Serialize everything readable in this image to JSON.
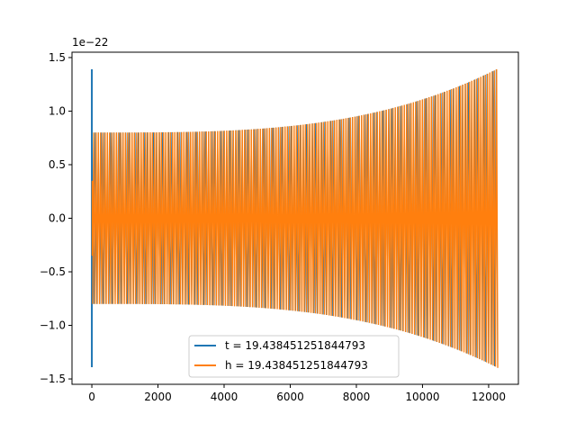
{
  "chart_data": {
    "type": "line",
    "xlim": [
      -600,
      12900
    ],
    "ylim": [
      -1.55,
      1.55
    ],
    "x_ticks": [
      0,
      2000,
      4000,
      6000,
      8000,
      10000,
      12000
    ],
    "x_tick_labels": [
      "0",
      "2000",
      "4000",
      "6000",
      "8000",
      "10000",
      "12000"
    ],
    "y_ticks": [
      -1.5,
      -1.0,
      -0.5,
      0.0,
      0.5,
      1.0,
      1.5
    ],
    "y_tick_labels": [
      "−1.5",
      "−1.0",
      "−0.5",
      "0.0",
      "0.5",
      "1.0",
      "1.5"
    ],
    "y_offset_label": "1e−22",
    "grid": false,
    "legend_position": "lower-center",
    "series": [
      {
        "name": "t = 19.438451251844793",
        "color": "#1f77b4",
        "x_range": [
          0,
          12300
        ],
        "amplitude_start": 0.8,
        "amplitude_end": 1.4,
        "spike_amplitude": 1.39
      },
      {
        "name": "h = 19.438451251844793",
        "color": "#ff7f0e",
        "x_range": [
          0,
          12300
        ],
        "amplitude_start": 0.8,
        "amplitude_end": 1.4
      }
    ]
  }
}
